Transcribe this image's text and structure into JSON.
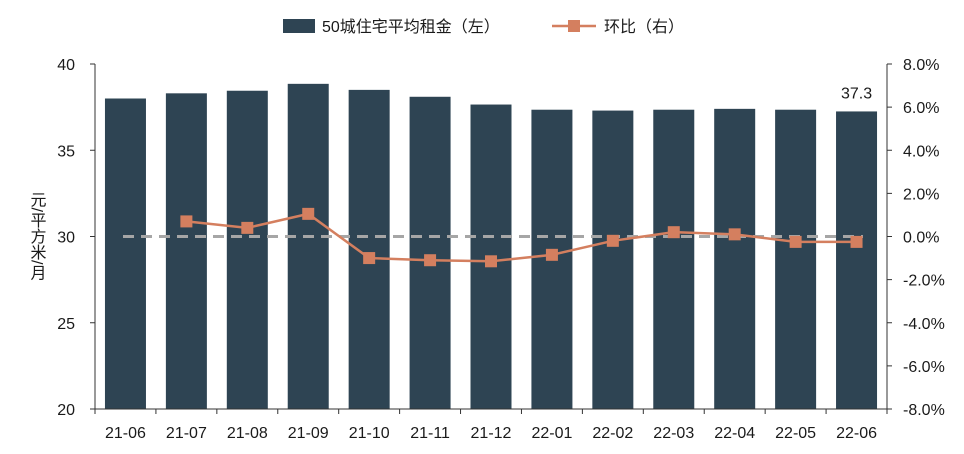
{
  "chart_data": {
    "type": "bar",
    "categories": [
      "21-06",
      "21-07",
      "21-08",
      "21-09",
      "21-10",
      "21-11",
      "21-12",
      "22-01",
      "22-02",
      "22-03",
      "22-04",
      "22-05",
      "22-06"
    ],
    "series": [
      {
        "name": "50城住宅平均租金（左）",
        "type": "bar",
        "axis": "left",
        "color": "#2e4453",
        "values": [
          38.0,
          38.3,
          38.45,
          38.85,
          38.5,
          38.1,
          37.65,
          37.35,
          37.3,
          37.35,
          37.4,
          37.35,
          37.25
        ]
      },
      {
        "name": "环比（右）",
        "type": "line",
        "axis": "right",
        "color": "#d47f5f",
        "values": [
          null,
          0.7,
          0.4,
          1.05,
          -1.0,
          -1.1,
          -1.15,
          -0.85,
          -0.2,
          0.2,
          0.1,
          -0.25,
          -0.25
        ]
      }
    ],
    "left_axis": {
      "label": "元/平方米/月",
      "min": 20,
      "max": 40,
      "ticks": [
        "20",
        "25",
        "30",
        "35",
        "40"
      ]
    },
    "right_axis": {
      "min": -8,
      "max": 8,
      "ticks": [
        "-8.0%",
        "-6.0%",
        "-4.0%",
        "-2.0%",
        "0.0%",
        "2.0%",
        "4.0%",
        "6.0%",
        "8.0%"
      ]
    },
    "annotation": {
      "text": "37.3",
      "category": "22-06"
    },
    "reference_line_at_right_value": 0,
    "reference_line_color": "#a6a6a6",
    "legend_position": "top-center",
    "grid": false
  }
}
